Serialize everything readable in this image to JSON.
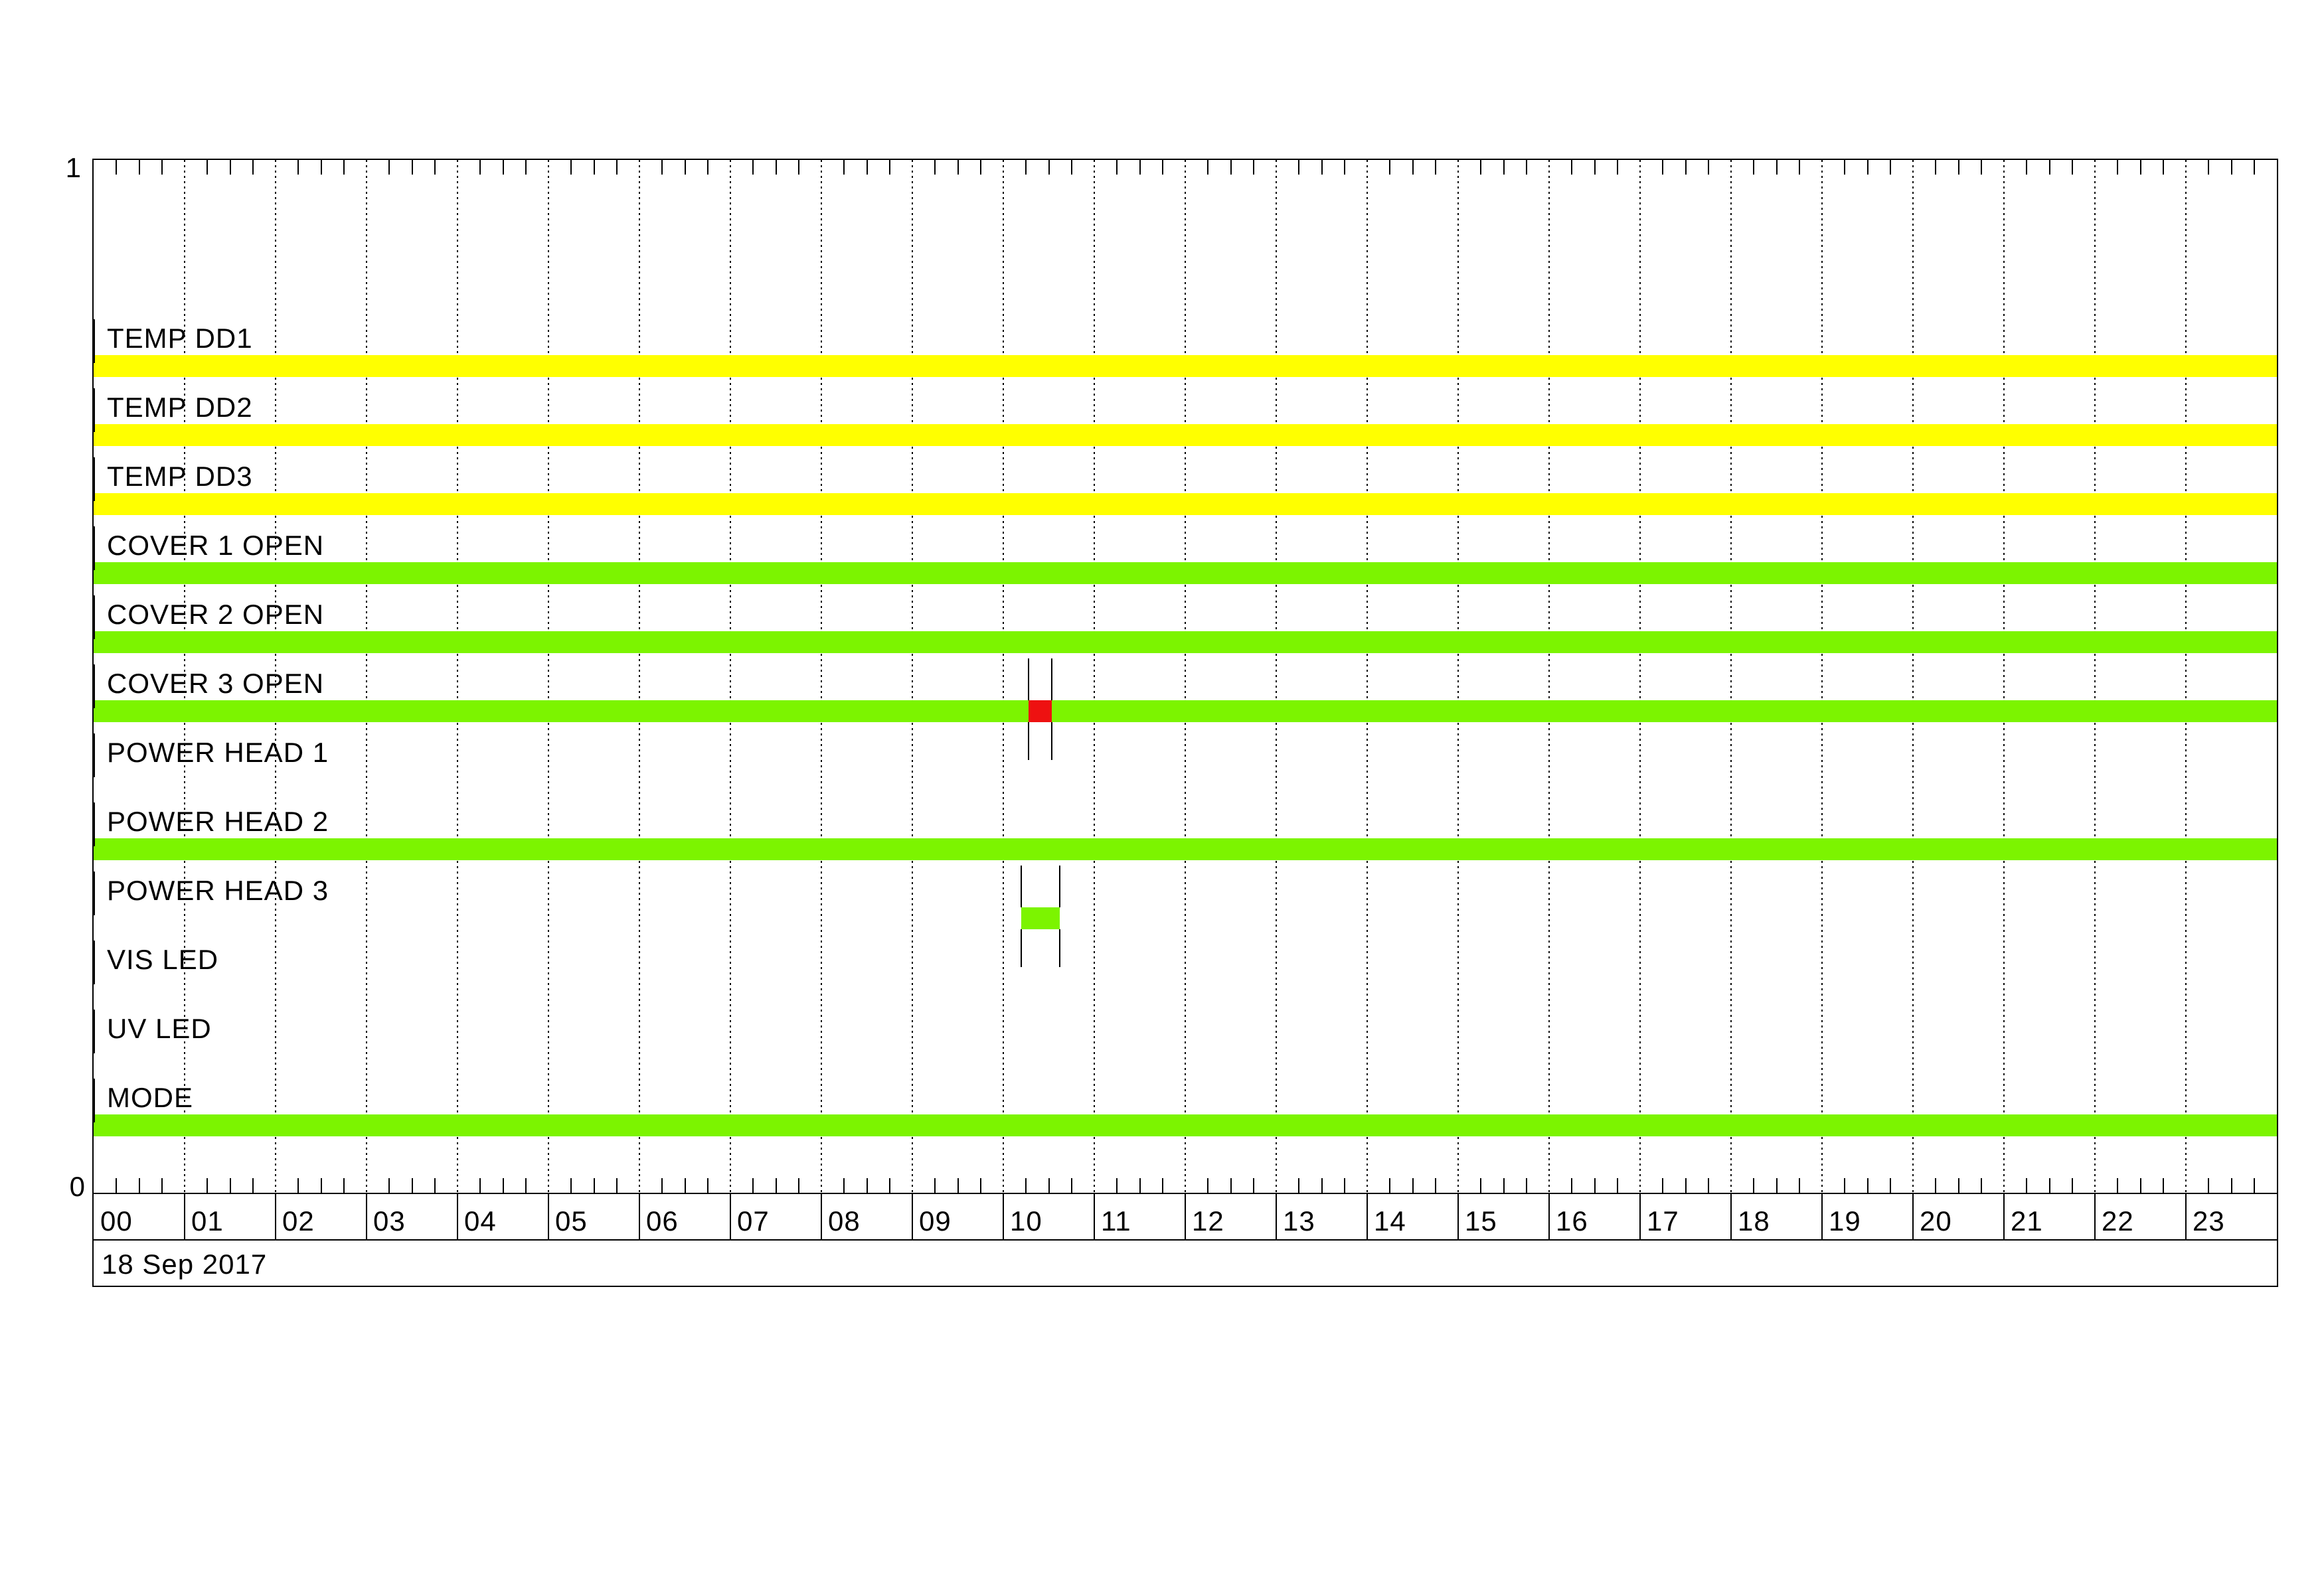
{
  "chart_data": {
    "type": "timeline",
    "title": "",
    "date_label": "18 Sep 2017",
    "y_axis": {
      "top_label": "1",
      "bottom_label": "0",
      "range": [
        0,
        1
      ]
    },
    "x_axis": {
      "hours": [
        "00",
        "01",
        "02",
        "03",
        "04",
        "05",
        "06",
        "07",
        "08",
        "09",
        "10",
        "11",
        "12",
        "13",
        "14",
        "15",
        "16",
        "17",
        "18",
        "19",
        "20",
        "21",
        "22",
        "23"
      ],
      "minor_ticks_per_hour": 4,
      "range_hours": [
        0,
        24
      ],
      "grid": "dotted-vertical-per-hour"
    },
    "colors": {
      "yellow": "#FFFF00",
      "green": "#7CF400",
      "red": "#EE1111",
      "line": "#000000",
      "background": "#FFFFFF"
    },
    "legend_position": "none",
    "rows": [
      {
        "label": "TEMP DD1",
        "color": "yellow",
        "intervals": [
          [
            0,
            24
          ]
        ]
      },
      {
        "label": "TEMP DD2",
        "color": "yellow",
        "intervals": [
          [
            0,
            24
          ]
        ]
      },
      {
        "label": "TEMP DD3",
        "color": "yellow",
        "intervals": [
          [
            0,
            24
          ]
        ]
      },
      {
        "label": "COVER 1 OPEN",
        "color": "green",
        "intervals": [
          [
            0,
            24
          ]
        ]
      },
      {
        "label": "COVER 2 OPEN",
        "color": "green",
        "intervals": [
          [
            0,
            24
          ]
        ]
      },
      {
        "label": "COVER 3 OPEN",
        "color": "green",
        "intervals": [
          [
            0,
            24
          ]
        ],
        "event": {
          "color": "red",
          "start_hour": 10.28,
          "end_hour": 10.53,
          "bracket": true
        }
      },
      {
        "label": "POWER HEAD 1",
        "color": "green",
        "intervals": []
      },
      {
        "label": "POWER HEAD 2",
        "color": "green",
        "intervals": [
          [
            0,
            24
          ]
        ]
      },
      {
        "label": "POWER HEAD 3",
        "color": "green",
        "intervals": [
          [
            10.2,
            10.62
          ]
        ],
        "event": {
          "color": "green",
          "start_hour": 10.2,
          "end_hour": 10.62,
          "bracket": true
        }
      },
      {
        "label": "VIS LED",
        "color": "green",
        "intervals": []
      },
      {
        "label": "UV LED",
        "color": "green",
        "intervals": []
      },
      {
        "label": "MODE",
        "color": "green",
        "intervals": [
          [
            0,
            24
          ]
        ]
      }
    ]
  }
}
